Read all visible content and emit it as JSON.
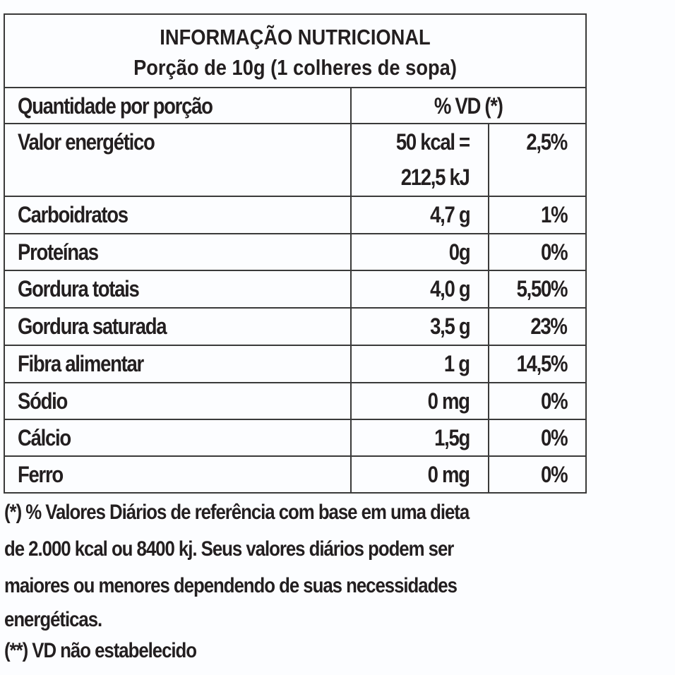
{
  "title": "INFORMAÇÃO NUTRICIONAL",
  "portion": "Porção de 10g (1 colheres de sopa)",
  "header": {
    "qty": "Quantidade por porção",
    "vd": "% VD (*)"
  },
  "energy": {
    "label": "Valor energético",
    "value_line1": "50 kcal =",
    "value_line2": "212,5 kJ",
    "vd": "2,5%"
  },
  "rows": [
    {
      "label": "Carboidratos",
      "value": "4,7 g",
      "vd": "1%"
    },
    {
      "label": "Proteínas",
      "value": "0g",
      "vd": "0%"
    },
    {
      "label": "Gordura totais",
      "value": "4,0 g",
      "vd": "5,50%"
    },
    {
      "label": "Gordura saturada",
      "value": "3,5 g",
      "vd": "23%"
    },
    {
      "label": "Fibra alimentar",
      "value": "1 g",
      "vd": "14,5%"
    },
    {
      "label": "Sódio",
      "value": "0 mg",
      "vd": "0%"
    },
    {
      "label": "Cálcio",
      "value": "1,5g",
      "vd": "0%"
    },
    {
      "label": "Ferro",
      "value": "0 mg",
      "vd": "0%"
    }
  ],
  "footnote": {
    "lines": [
      "(*) % Valores Diários de referência com base em uma dieta",
      "de 2.000 kcal ou 8400 kj. Seus valores diários podem ser",
      "maiores ou menores dependendo de suas necessidades",
      "energéticas."
    ],
    "nd": "(**) VD não estabelecido"
  }
}
